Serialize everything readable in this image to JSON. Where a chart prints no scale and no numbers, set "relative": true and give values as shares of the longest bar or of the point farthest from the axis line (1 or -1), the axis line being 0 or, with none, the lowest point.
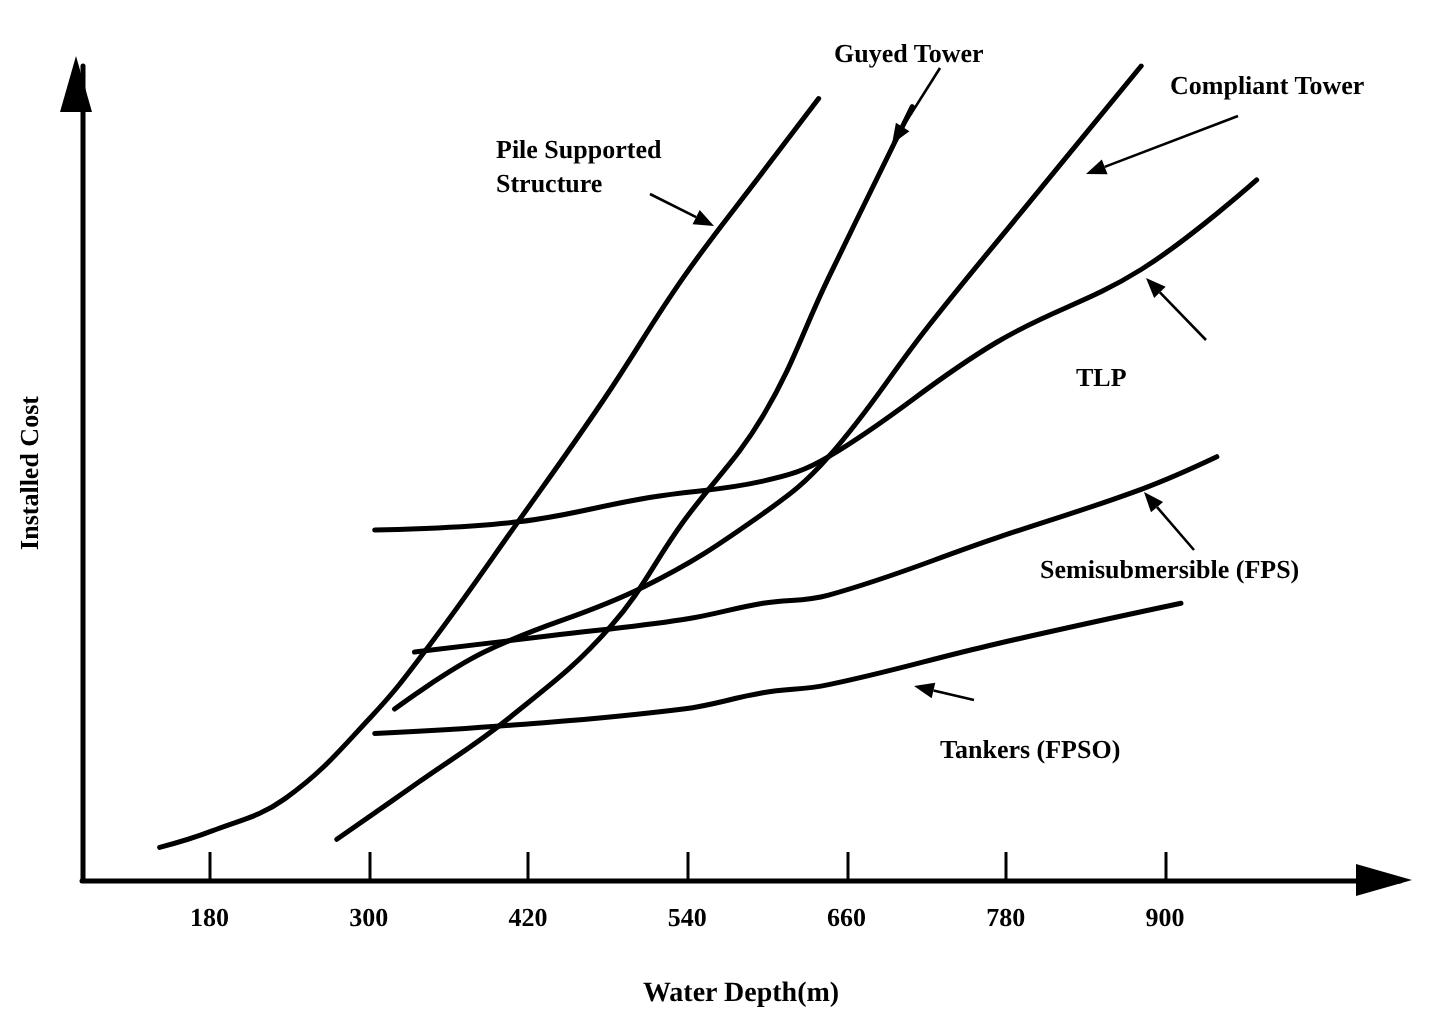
{
  "chart_data": {
    "type": "line",
    "xlabel": "Water Depth(m)",
    "ylabel": "Installed Cost",
    "relative": true,
    "marker": "none",
    "line_style": "solid",
    "xlim": [
      84,
      1077
    ],
    "xticks": [
      180,
      300,
      420,
      540,
      660,
      780,
      900
    ],
    "series": [
      {
        "name": "Pile Supported Structure",
        "color": "#000000",
        "x": [
          142.5,
          181.5,
          237,
          301.5,
          346.5,
          412.5,
          477,
          537,
          597,
          639
        ],
        "values": [
          0.04,
          0.06,
          0.1,
          0.2,
          0.29,
          0.44,
          0.59,
          0.74,
          0.87,
          0.96
        ]
      },
      {
        "name": "Guyed Tower",
        "color": "#000000",
        "x": [
          276,
          337.5,
          406.5,
          481.5,
          537,
          597,
          646.5,
          709.5
        ],
        "values": [
          0.05,
          0.12,
          0.2,
          0.31,
          0.44,
          0.57,
          0.74,
          0.95
        ]
      },
      {
        "name": "Compliant Tower",
        "color": "#000000",
        "x": [
          319.5,
          387,
          507,
          597,
          646.5,
          721.5,
          796.5,
          882
        ],
        "values": [
          0.21,
          0.28,
          0.36,
          0.45,
          0.52,
          0.68,
          0.83,
          1
        ]
      },
      {
        "name": "TLP",
        "color": "#000000",
        "x": [
          304.5,
          412.5,
          511.5,
          597,
          646.5,
          772.5,
          882,
          969
        ],
        "values": [
          0.43,
          0.44,
          0.47,
          0.49,
          0.52,
          0.66,
          0.75,
          0.86
        ]
      },
      {
        "name": "Semisubmersible (FPS)",
        "color": "#000000",
        "x": [
          334.5,
          436.5,
          537,
          597,
          646.5,
          772.5,
          882,
          939
        ],
        "values": [
          0.28,
          0.3,
          0.32,
          0.34,
          0.35,
          0.42,
          0.48,
          0.52
        ]
      },
      {
        "name": "Tankers (FPSO)",
        "color": "#000000",
        "x": [
          304.5,
          406.5,
          537,
          597,
          646.5,
          772.5,
          912
        ],
        "values": [
          0.18,
          0.19,
          0.21,
          0.23,
          0.24,
          0.29,
          0.34
        ]
      }
    ]
  }
}
